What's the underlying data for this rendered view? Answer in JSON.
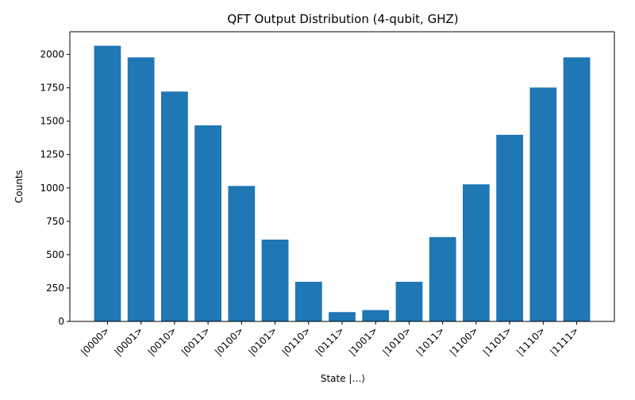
{
  "chart_data": {
    "type": "bar",
    "title": "QFT Output Distribution (4-qubit, GHZ)",
    "xlabel": "State |…⟩",
    "ylabel": "Counts",
    "ylim": [
      0,
      2170
    ],
    "yticks": [
      0,
      250,
      500,
      750,
      1000,
      1250,
      1500,
      1750,
      2000
    ],
    "grid": false,
    "legend": "none",
    "bar_color": "#1f77b4",
    "categories": [
      "|0000>",
      "|0001>",
      "|0010>",
      "|0011>",
      "|0100>",
      "|0101>",
      "|0110>",
      "|0111>",
      "|1001>",
      "|1010>",
      "|1011>",
      "|1100>",
      "|1101>",
      "|1110>",
      "|1111>"
    ],
    "values": [
      2065,
      1978,
      1722,
      1469,
      1015,
      613,
      297,
      70,
      85,
      297,
      632,
      1027,
      1398,
      1752,
      1978
    ]
  }
}
